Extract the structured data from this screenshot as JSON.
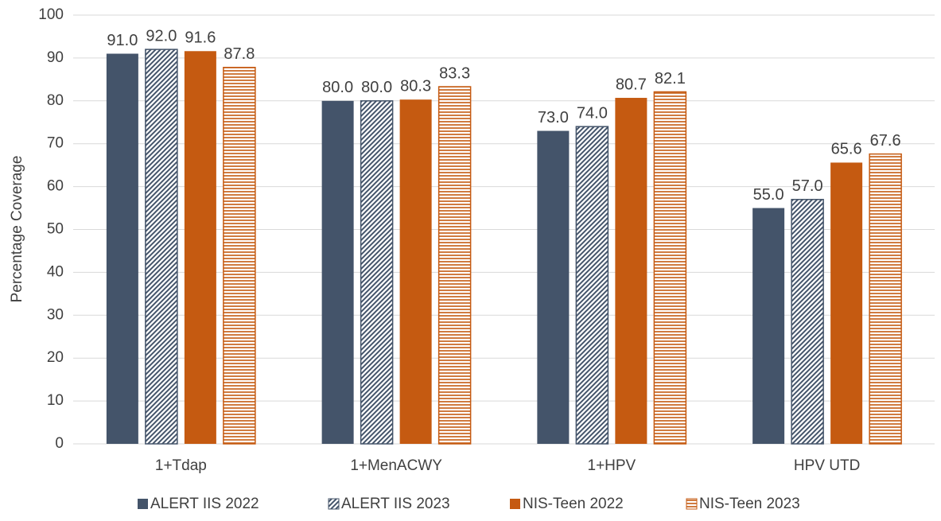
{
  "chart_data": {
    "type": "bar",
    "y_label": "Percentage Coverage",
    "categories": [
      "1+Tdap",
      "1+MenACWY",
      "1+HPV",
      "HPV UTD"
    ],
    "series": [
      {
        "name": "ALERT IIS 2022",
        "color": "#44546a",
        "pattern": "solid",
        "values": [
          91,
          80,
          73,
          55
        ],
        "value_labels": [
          "91.0",
          "80.0",
          "73.0",
          "55.0"
        ]
      },
      {
        "name": "ALERT IIS 2023",
        "color": "#44546a",
        "pattern": "diagonal",
        "values": [
          92,
          80,
          74,
          57
        ],
        "value_labels": [
          "92.0",
          "80.0",
          "74.0",
          "57.0"
        ]
      },
      {
        "name": "NIS-Teen 2022",
        "color": "#c55a11",
        "pattern": "solid",
        "values": [
          91.6,
          80.3,
          80.7,
          65.6
        ]
      },
      {
        "name": "NIS-Teen 2023",
        "color": "#c55a11",
        "pattern": "horizontal",
        "values": [
          87.8,
          83.3,
          82.1,
          67.6
        ]
      }
    ],
    "ylim": [
      0,
      100
    ],
    "yticks": [
      0,
      10,
      20,
      30,
      40,
      50,
      60,
      70,
      80,
      90,
      100
    ],
    "grid": true,
    "legend": "bottom"
  }
}
